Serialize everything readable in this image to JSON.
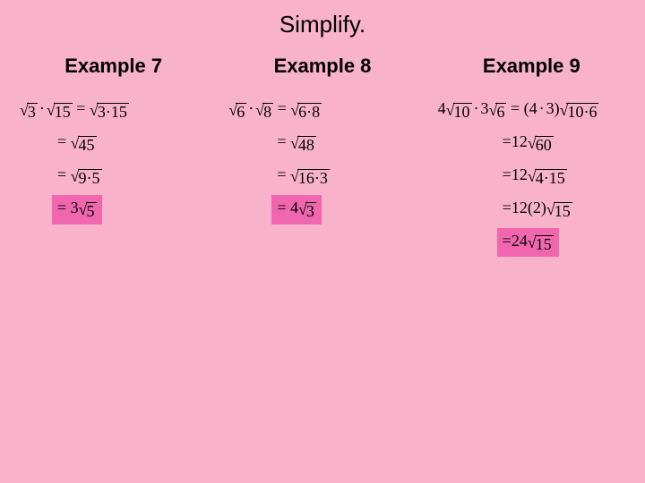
{
  "title": "Simplify.",
  "headers": {
    "c1": "Example 7",
    "c2": "Example 8",
    "c3": "Example 9"
  },
  "text": {
    "eq": "=",
    "dot": "·",
    "open": "(",
    "close": ")"
  },
  "ex7": {
    "l1_a": "3",
    "l1_b": "15",
    "l1_c": "3·15",
    "l2": "45",
    "l3": "9·5",
    "l4_a": "3",
    "l4_b": "5"
  },
  "ex8": {
    "l1_a": "6",
    "l1_b": "8",
    "l1_c": "6·8",
    "l2": "48",
    "l3": "16·3",
    "l4_a": "4",
    "l4_b": "3"
  },
  "ex9": {
    "l1_a": "4",
    "l1_b": "10",
    "l1_c": "3",
    "l1_d": "6",
    "l1_e": "4",
    "l1_f": "3",
    "l1_g": "10·6",
    "l2_a": "12",
    "l2_b": "60",
    "l3_a": "12",
    "l3_b": "4·15",
    "l4_a": "12",
    "l4_b": "2",
    "l4_c": "15",
    "l5_a": "24",
    "l5_b": "15"
  },
  "style": {
    "page_bg": "#f8b2c9",
    "highlight_bg": "#f067b0",
    "title_fontsize": 26,
    "header_fontsize": 22,
    "step_fontsize": 18
  }
}
